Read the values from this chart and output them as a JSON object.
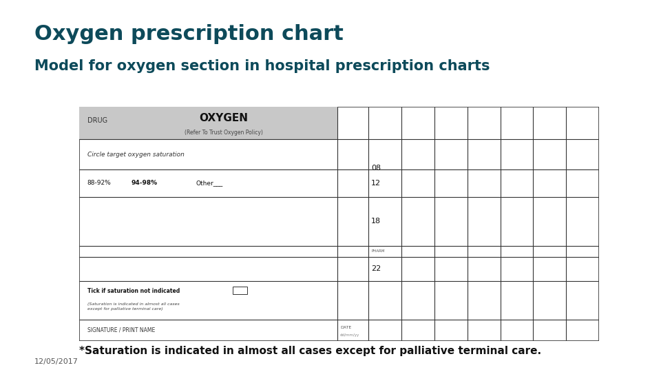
{
  "title": "Oxygen prescription chart",
  "subtitle": "Model for oxygen section in hospital prescription charts",
  "footer_note": "*Saturation is indicated in almost all cases except for palliative terminal care.",
  "date": "12/05/2017",
  "title_color": "#0d4a5a",
  "subtitle_color": "#0d4a5a",
  "header_bar_color": "#0d4a5a",
  "bg_color": "#ffffff",
  "table_border_color": "#333333",
  "header_bg": "#c8c8c8",
  "times": [
    "08",
    "12",
    "18",
    "22"
  ],
  "pharm_label": "PHARM",
  "drug_label": "DRUG",
  "oxygen_label": "OXYGEN",
  "refer_label": "(Refer To Trust Oxygen Policy)",
  "circle_label": "Circle target oxygen saturation",
  "sat1": "88-92%",
  "sat2": "94-98%",
  "sat3": "Other___",
  "tick_label": "Tick if saturation not indicated",
  "tick_note": "(Saturation is indicated in almost all cases\nexcept for palliative terminal care)",
  "sig_label": "SIGNATURE / PRINT NAME",
  "date_label": "DATE\ndd/mm/yy",
  "title_fontsize": 22,
  "subtitle_fontsize": 15,
  "footer_fontsize": 11,
  "date_fontsize": 8
}
